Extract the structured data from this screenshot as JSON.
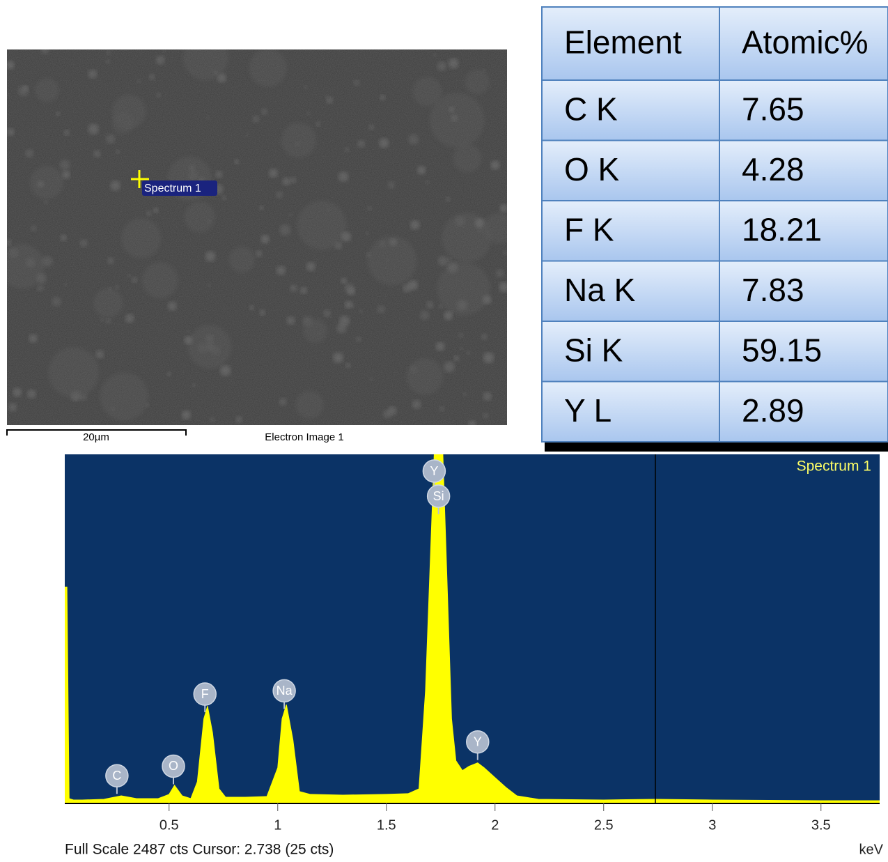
{
  "sem_image": {
    "marker_label": "Spectrum 1",
    "scale_label": "20µm",
    "caption": "Electron Image 1"
  },
  "table": {
    "header": [
      "Element",
      "Atomic%"
    ],
    "rows": [
      [
        "C K",
        "7.65"
      ],
      [
        "O K",
        "4.28"
      ],
      [
        "F K",
        "18.21"
      ],
      [
        "Na K",
        "7.83"
      ],
      [
        "Si K",
        "59.15"
      ],
      [
        "Y L",
        "2.89"
      ]
    ]
  },
  "chart_data": {
    "type": "area",
    "title": "Spectrum 1",
    "x_label": "keV",
    "status": "Full Scale 2487 cts Cursor: 2.738  (25 cts)",
    "x": [
      0.02,
      0.03,
      0.04,
      0.06,
      0.1,
      0.2,
      0.28,
      0.35,
      0.45,
      0.5,
      0.525,
      0.56,
      0.6,
      0.63,
      0.66,
      0.677,
      0.7,
      0.73,
      0.76,
      0.85,
      0.95,
      1.0,
      1.02,
      1.04,
      1.07,
      1.1,
      1.15,
      1.3,
      1.5,
      1.6,
      1.65,
      1.68,
      1.72,
      1.76,
      1.8,
      1.82,
      1.85,
      1.88,
      1.92,
      1.95,
      2.0,
      2.05,
      2.1,
      2.2,
      2.5,
      2.738,
      3.0,
      3.5,
      3.77
    ],
    "values": [
      1540,
      1540,
      30,
      20,
      20,
      25,
      50,
      30,
      30,
      60,
      125,
      50,
      30,
      150,
      600,
      690,
      500,
      100,
      40,
      40,
      45,
      250,
      600,
      700,
      450,
      80,
      60,
      55,
      60,
      65,
      100,
      800,
      2487,
      2487,
      600,
      300,
      230,
      260,
      285,
      250,
      180,
      110,
      50,
      25,
      20,
      25,
      20,
      15,
      15
    ],
    "color": "#ffff00",
    "background": "#0b3366",
    "xlim": [
      0.02,
      3.77
    ],
    "ylim": [
      0,
      2487
    ],
    "xticks": [
      0.5,
      1,
      1.5,
      2,
      2.5,
      3,
      3.5
    ],
    "cursor": 2.738,
    "peak_labels": [
      {
        "label": "C",
        "x": 0.26
      },
      {
        "label": "O",
        "x": 0.52
      },
      {
        "label": "F",
        "x": 0.665
      },
      {
        "label": "Na",
        "x": 1.03
      },
      {
        "label": "Y",
        "x": 1.72
      },
      {
        "label": "Si",
        "x": 1.74
      },
      {
        "label": "Y",
        "x": 1.92
      }
    ]
  }
}
